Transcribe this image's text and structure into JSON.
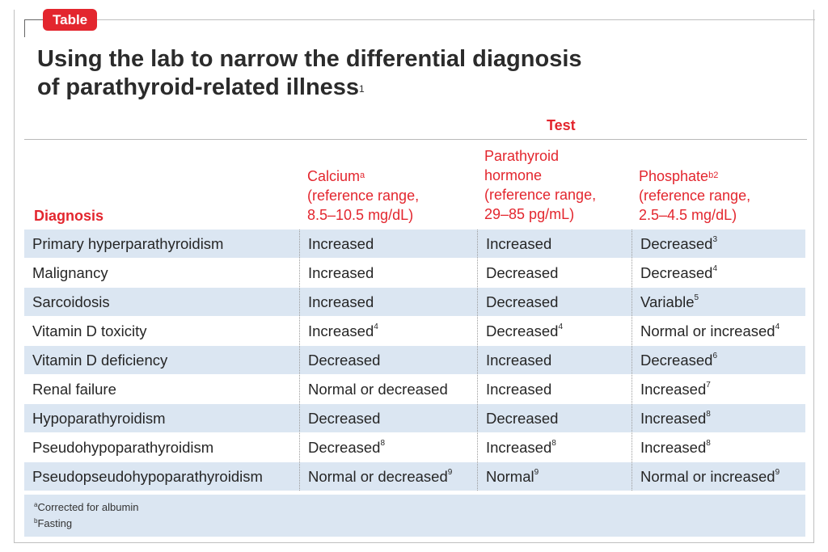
{
  "badge": "Table",
  "title": {
    "line1": "Using the lab to narrow the differential diagnosis",
    "line2": "of parathyroid-related illness",
    "ref": "1"
  },
  "test_header": "Test",
  "columns": {
    "diagnosis": "Diagnosis",
    "calcium": {
      "name": "Calcium",
      "sup": "a",
      "line2": "(reference range,",
      "line3": "8.5–10.5 mg/dL)"
    },
    "pth": {
      "line1": "Parathyroid",
      "line2": "hormone",
      "line3": "(reference range,",
      "line4": "29–85 pg/mL)"
    },
    "phosphate": {
      "name": "Phosphate",
      "sup": "b2",
      "line2": "(reference range,",
      "line3": "2.5–4.5 mg/dL)"
    }
  },
  "rows": [
    {
      "diagnosis": "Primary hyperparathyroidism",
      "calcium": "Increased",
      "calcium_sup": "",
      "pth": "Increased",
      "pth_sup": "",
      "phosphate": "Decreased",
      "phosphate_sup": "3"
    },
    {
      "diagnosis": "Malignancy",
      "calcium": "Increased",
      "calcium_sup": "",
      "pth": "Decreased",
      "pth_sup": "",
      "phosphate": "Decreased",
      "phosphate_sup": "4"
    },
    {
      "diagnosis": "Sarcoidosis",
      "calcium": "Increased",
      "calcium_sup": "",
      "pth": "Decreased",
      "pth_sup": "",
      "phosphate": "Variable",
      "phosphate_sup": "5"
    },
    {
      "diagnosis": "Vitamin D toxicity",
      "calcium": "Increased",
      "calcium_sup": "4",
      "pth": "Decreased",
      "pth_sup": "4",
      "phosphate": "Normal or increased",
      "phosphate_sup": "4"
    },
    {
      "diagnosis": "Vitamin D deficiency",
      "calcium": "Decreased",
      "calcium_sup": "",
      "pth": "Increased",
      "pth_sup": "",
      "phosphate": "Decreased",
      "phosphate_sup": "6"
    },
    {
      "diagnosis": "Renal failure",
      "calcium": "Normal or decreased",
      "calcium_sup": "",
      "pth": "Increased",
      "pth_sup": "",
      "phosphate": "Increased",
      "phosphate_sup": "7"
    },
    {
      "diagnosis": "Hypoparathyroidism",
      "calcium": "Decreased",
      "calcium_sup": "",
      "pth": "Decreased",
      "pth_sup": "",
      "phosphate": "Increased",
      "phosphate_sup": "8"
    },
    {
      "diagnosis": "Pseudohypoparathyroidism",
      "calcium": "Decreased",
      "calcium_sup": "8",
      "pth": "Increased",
      "pth_sup": "8",
      "phosphate": "Increased",
      "phosphate_sup": "8"
    },
    {
      "diagnosis": "Pseudopseudohypoparathyroidism",
      "calcium": "Normal or decreased",
      "calcium_sup": "9",
      "pth": "Normal",
      "pth_sup": "9",
      "phosphate": "Normal or increased",
      "phosphate_sup": "9"
    }
  ],
  "footnotes": [
    {
      "mark": "a",
      "text": "Corrected for albumin"
    },
    {
      "mark": "b",
      "text": "Fasting"
    }
  ],
  "colors": {
    "accent": "#e3262e",
    "row_shade": "#dbe6f2",
    "text": "#262626"
  }
}
